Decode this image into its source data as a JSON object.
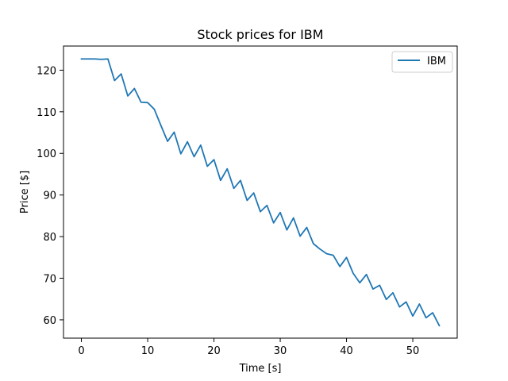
{
  "chart_data": {
    "type": "line",
    "title": "Stock prices for IBM",
    "xlabel": "Time [s]",
    "ylabel": "Price [$]",
    "xlim": [
      -2.7,
      56.7
    ],
    "ylim": [
      55.6,
      125.8
    ],
    "xticks": [
      0,
      10,
      20,
      30,
      40,
      50
    ],
    "yticks": [
      60,
      70,
      80,
      90,
      100,
      110,
      120
    ],
    "grid": false,
    "legend": "top-right",
    "series": [
      {
        "name": "IBM",
        "color": "#1f77b4",
        "x": [
          0,
          1,
          2,
          3,
          4,
          5,
          6,
          7,
          8,
          9,
          10,
          11,
          12,
          13,
          14,
          15,
          16,
          17,
          18,
          19,
          20,
          21,
          22,
          23,
          24,
          25,
          26,
          27,
          28,
          29,
          30,
          31,
          32,
          33,
          34,
          35,
          36,
          37,
          38,
          39,
          40,
          41,
          42,
          43,
          44,
          45,
          46,
          47,
          48,
          49,
          50,
          51,
          52,
          53,
          54
        ],
        "y": [
          122.7,
          122.7,
          122.7,
          122.6,
          122.7,
          117.5,
          119.1,
          113.8,
          115.6,
          112.3,
          112.2,
          110.6,
          106.7,
          102.9,
          105.1,
          99.9,
          102.8,
          99.2,
          102.0,
          96.9,
          98.5,
          93.5,
          96.3,
          91.6,
          93.5,
          88.7,
          90.5,
          86.0,
          87.5,
          83.3,
          85.8,
          81.6,
          84.5,
          80.1,
          82.2,
          78.3,
          77.0,
          75.9,
          75.5,
          72.8,
          75.0,
          71.2,
          68.9,
          70.9,
          67.4,
          68.3,
          64.9,
          66.5,
          63.1,
          64.3,
          60.9,
          63.8,
          60.5,
          61.7,
          58.6
        ]
      }
    ]
  }
}
